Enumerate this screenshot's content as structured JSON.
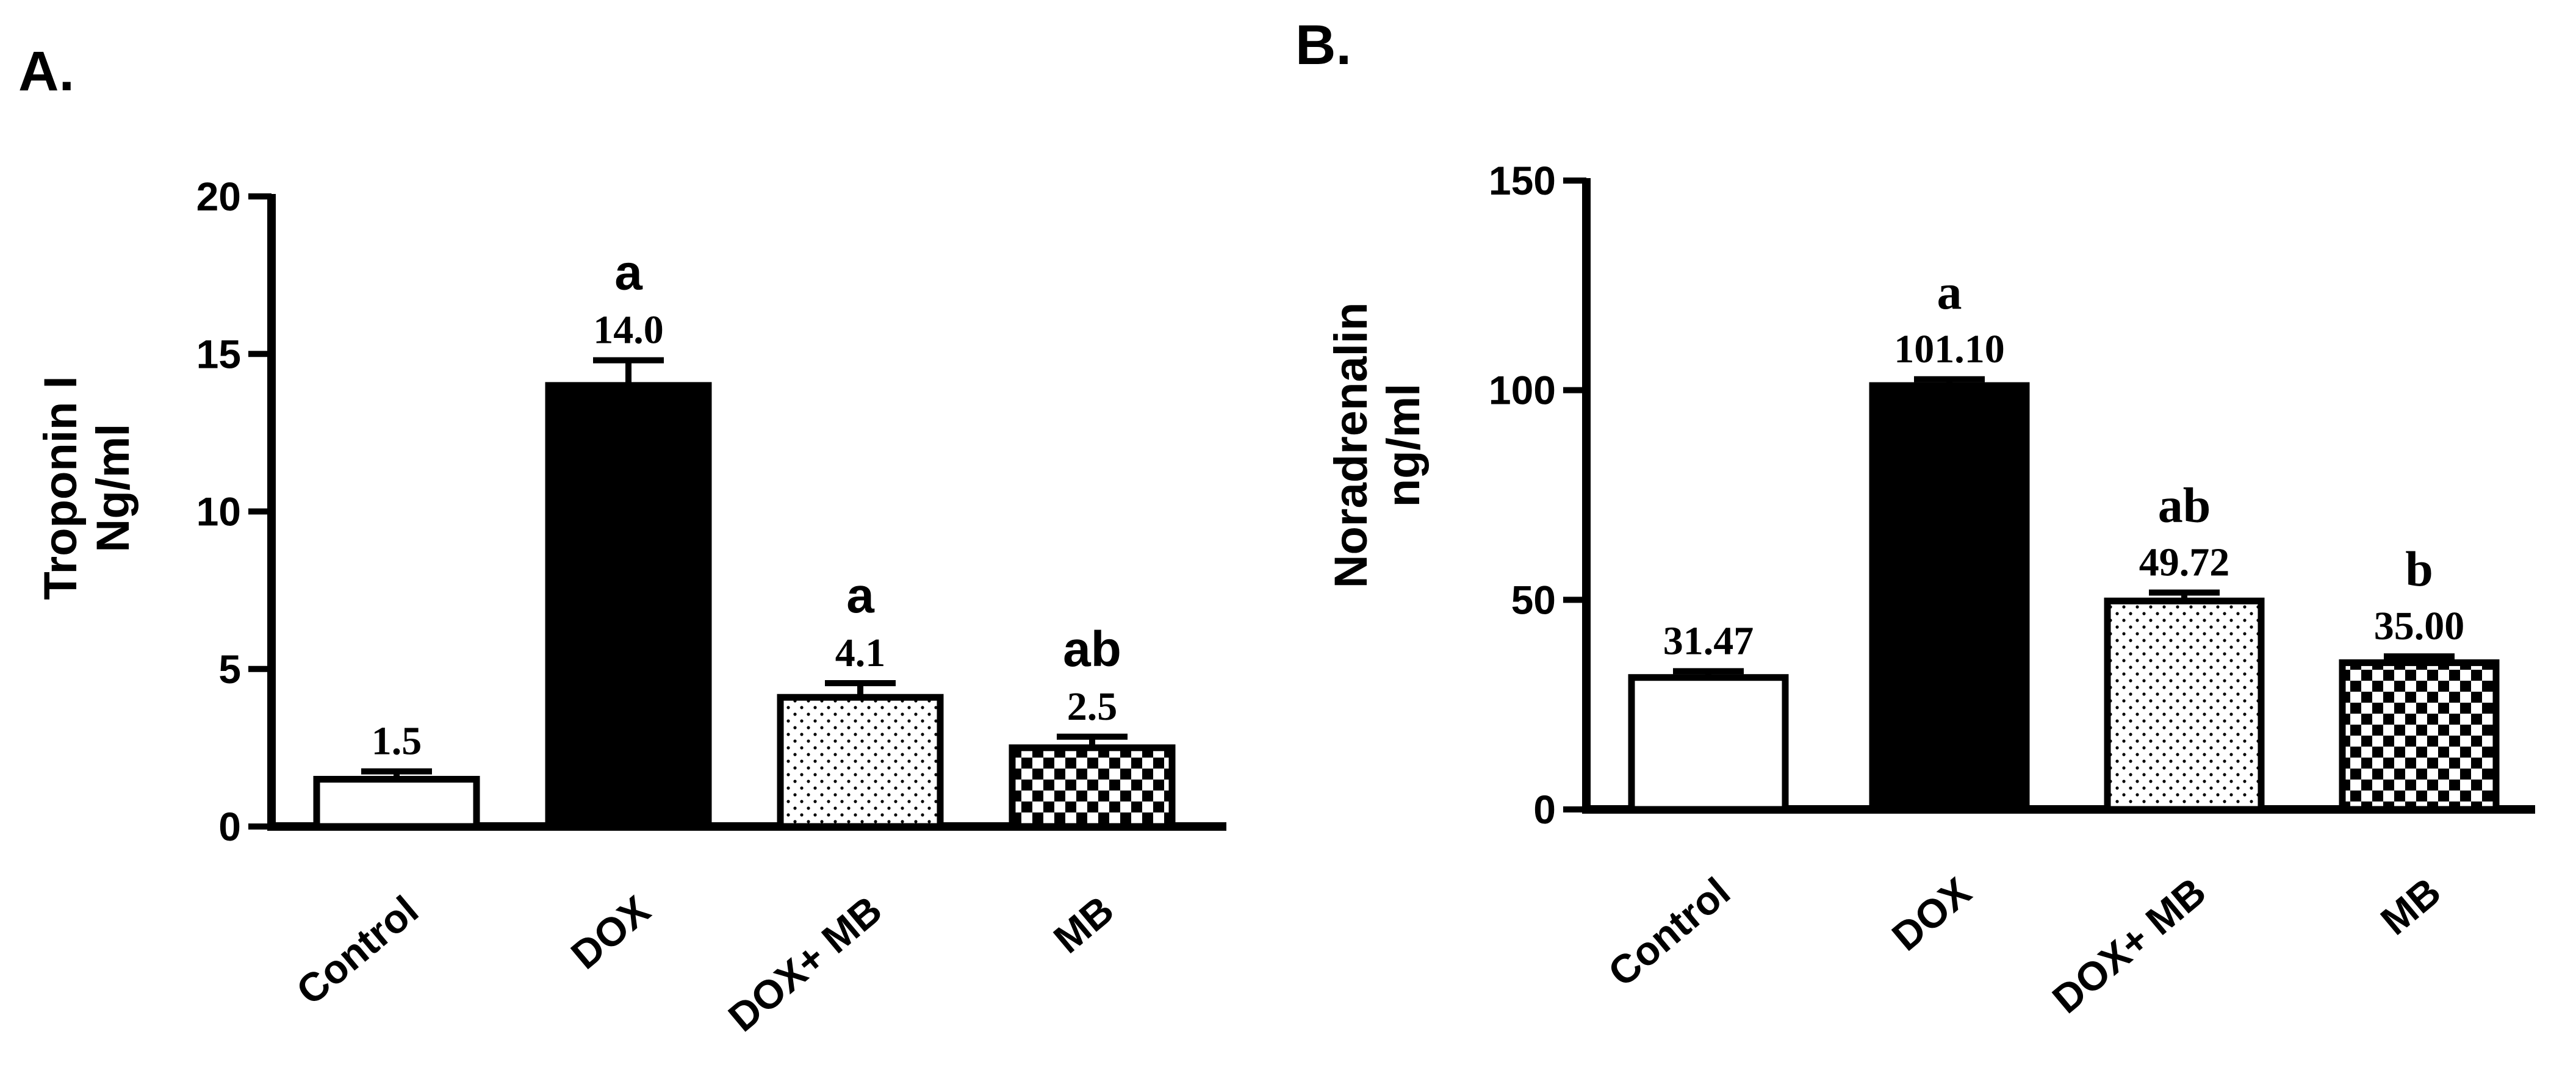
{
  "chart_data": [
    {
      "type": "bar",
      "panel_label": "A.",
      "categories": [
        "Control",
        "DOX",
        "DOX+ MB",
        "MB"
      ],
      "values": [
        1.5,
        14.0,
        4.1,
        2.5
      ],
      "value_labels": [
        "1.5",
        "14.0",
        "4.1",
        "2.5"
      ],
      "errors": [
        0.25,
        0.8,
        0.45,
        0.35
      ],
      "significance": [
        "",
        "a",
        "a",
        "ab"
      ],
      "ylabel_lines": [
        "Troponin I",
        "Ng/ml"
      ],
      "ylim": [
        0,
        20
      ],
      "yticks": [
        0,
        5,
        10,
        15,
        20
      ],
      "fills": [
        "white",
        "black",
        "dots",
        "checker"
      ],
      "grid": false,
      "legend": "none"
    },
    {
      "type": "bar",
      "panel_label": "B.",
      "categories": [
        "Control",
        "DOX",
        "DOX+ MB",
        "MB"
      ],
      "values": [
        31.47,
        101.1,
        49.72,
        35.0
      ],
      "value_labels": [
        "31.47",
        "101.10",
        "49.72",
        "35.00"
      ],
      "errors": [
        1.5,
        1.5,
        2.0,
        1.5
      ],
      "significance": [
        "",
        "a",
        "ab",
        "b"
      ],
      "ylabel_lines": [
        "Noradrenalin",
        "ng/ml"
      ],
      "ylim": [
        0,
        150
      ],
      "yticks": [
        0,
        50,
        100,
        150
      ],
      "fills": [
        "white",
        "black",
        "dots",
        "checker"
      ],
      "grid": false,
      "legend": "none"
    }
  ]
}
